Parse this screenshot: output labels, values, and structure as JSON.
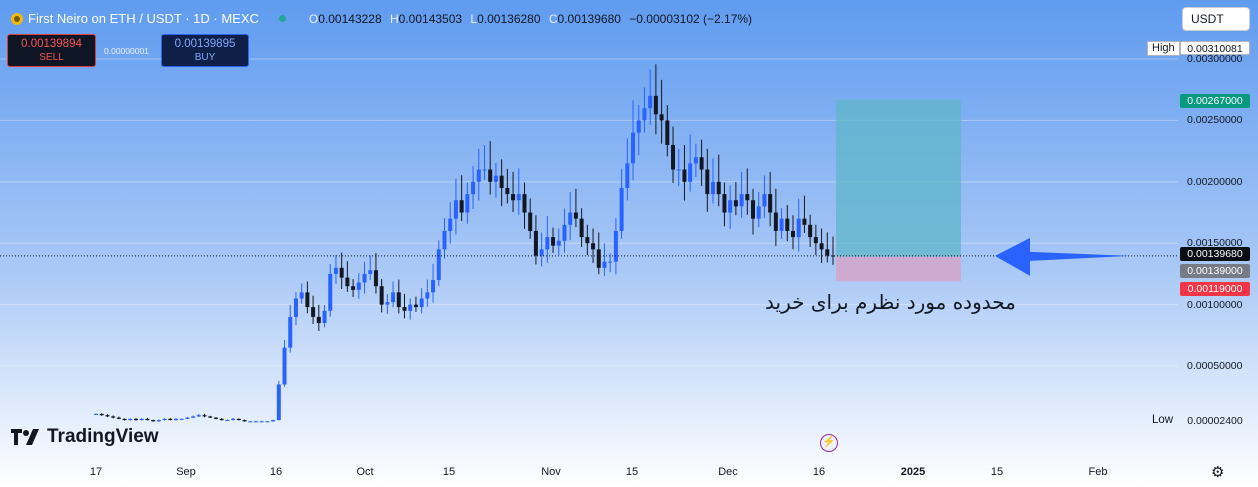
{
  "header": {
    "title": "First Neiro on ETH / USDT · 1D · MEXC",
    "ohlc": [
      {
        "key": "O",
        "value": "0.00143228"
      },
      {
        "key": "H",
        "value": "0.00143503"
      },
      {
        "key": "L",
        "value": "0.00136280"
      },
      {
        "key": "C",
        "value": "0.00139680"
      }
    ],
    "change": "−0.00003102 (−2.17%)"
  },
  "trade": {
    "sell_price": "0.00139894",
    "sell_label": "SELL",
    "spread": "0.00000001",
    "buy_price": "0.00139895",
    "buy_label": "BUY"
  },
  "currency_button": "USDT",
  "price_tags": {
    "high_word": "High",
    "high_value": "0.00310081",
    "target": "0.00267000",
    "last": "0.00139680",
    "entry": "0.00139000",
    "stop": "0.00119000",
    "low_word": "Low",
    "low_value": "0.00002400"
  },
  "annotation": "محدوده مورد نظرم برای خرید",
  "logo_text": "TradingView",
  "icons": {
    "lightning": "lightning-icon",
    "settings": "gear-icon",
    "symbol": "coin-icon"
  },
  "colors": {
    "up": "#2962ff",
    "down": "#131722",
    "target_zone": "#5fb6c9",
    "stop_zone": "#d4a5c9",
    "arrow": "#2962ff"
  },
  "chart_data": {
    "type": "candlestick",
    "symbol": "First Neiro on ETH / USDT",
    "interval": "1D",
    "exchange": "MEXC",
    "y_axis_ticks": [
      0.003,
      0.0025,
      0.002,
      0.0015,
      0.001,
      0.0005
    ],
    "y_axis_tick_labels": [
      "0.00300000",
      "0.00250000",
      "0.00200000",
      "0.00150000",
      "0.00100000",
      "0.00050000"
    ],
    "x_axis_tick_labels": [
      "17",
      "Sep",
      "16",
      "Oct",
      "15",
      "Nov",
      "15",
      "Dec",
      "16",
      "2025",
      "15",
      "Feb"
    ],
    "x_axis_bold": "2025",
    "high": 0.00310081,
    "low": 2.4e-05,
    "last": 0.0013968,
    "position": {
      "entry": 0.00139,
      "target": 0.00267,
      "stop": 0.00119
    },
    "note": "Approximate daily closes read from the chart",
    "closes_approx": [
      0.00011,
      0.0001,
      9e-05,
      8e-05,
      7e-05,
      6e-05,
      7e-05,
      6e-05,
      7e-05,
      6e-05,
      5e-05,
      6e-05,
      7e-05,
      6e-05,
      7e-05,
      7e-05,
      8e-05,
      9e-05,
      0.0001,
      9e-05,
      8e-05,
      7e-05,
      6e-05,
      6e-05,
      7e-05,
      6e-05,
      5e-05,
      5e-05,
      5e-05,
      5e-05,
      5e-05,
      6e-05,
      0.00035,
      0.00065,
      0.0009,
      0.00105,
      0.0011,
      0.00098,
      0.0009,
      0.00085,
      0.00095,
      0.00125,
      0.0013,
      0.00122,
      0.00115,
      0.00112,
      0.00118,
      0.00125,
      0.00128,
      0.00115,
      0.001,
      0.00102,
      0.0011,
      0.00098,
      0.00095,
      0.001,
      0.00098,
      0.00105,
      0.0011,
      0.0012,
      0.00145,
      0.0016,
      0.0017,
      0.00185,
      0.00175,
      0.0019,
      0.002,
      0.0021,
      0.0021,
      0.002,
      0.00205,
      0.00195,
      0.0019,
      0.00185,
      0.0019,
      0.00175,
      0.0016,
      0.0014,
      0.00145,
      0.00155,
      0.00148,
      0.00152,
      0.00165,
      0.00175,
      0.0017,
      0.00155,
      0.0015,
      0.00145,
      0.0013,
      0.00135,
      0.00135,
      0.0016,
      0.00195,
      0.00215,
      0.0024,
      0.0025,
      0.0026,
      0.0027,
      0.00255,
      0.0025,
      0.0023,
      0.0021,
      0.0021,
      0.002,
      0.00215,
      0.0022,
      0.0021,
      0.0019,
      0.002,
      0.0019,
      0.00175,
      0.00185,
      0.0018,
      0.0019,
      0.00185,
      0.0017,
      0.0018,
      0.0019,
      0.00175,
      0.0016,
      0.0017,
      0.0016,
      0.00155,
      0.0017,
      0.00165,
      0.00155,
      0.0015,
      0.00145,
      0.0014,
      0.0013968
    ]
  }
}
